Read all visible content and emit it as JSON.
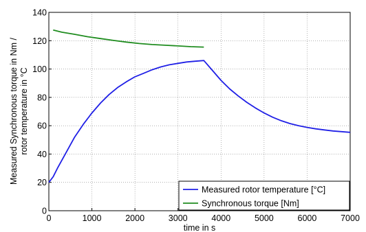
{
  "chart_data": {
    "type": "line",
    "title": "",
    "xlabel": "time in s",
    "ylabel_line1": "Measured Synchronous torque in Nm /",
    "ylabel_line2": "rotor temperature in °C",
    "xlim": [
      0,
      7000
    ],
    "ylim": [
      0,
      140
    ],
    "x_ticks": [
      0,
      1000,
      2000,
      3000,
      4000,
      5000,
      6000,
      7000
    ],
    "y_ticks": [
      0,
      20,
      40,
      60,
      80,
      100,
      120,
      140
    ],
    "grid": true,
    "legend_position": "bottom-right",
    "series": [
      {
        "name": "Measured rotor temperature [°C]",
        "color": "#1f1fe6",
        "x": [
          0,
          100,
          200,
          400,
          600,
          800,
          1000,
          1200,
          1400,
          1600,
          1800,
          2000,
          2200,
          2400,
          2600,
          2800,
          3000,
          3200,
          3400,
          3600,
          3800,
          4000,
          4200,
          4400,
          4600,
          4800,
          5000,
          5200,
          5400,
          5600,
          5800,
          6000,
          6200,
          6400,
          6600,
          6800,
          7000
        ],
        "y": [
          20,
          24,
          30,
          41,
          52,
          61,
          69,
          76,
          82,
          87,
          91,
          94.5,
          97,
          99.5,
          101.5,
          103,
          104,
          105,
          105.5,
          106,
          99,
          92,
          86,
          81,
          76.5,
          72.5,
          69,
          66,
          63.5,
          61.5,
          60,
          58.8,
          57.8,
          57,
          56.3,
          55.8,
          55.3
        ]
      },
      {
        "name": "Synchronous torque [Nm]",
        "color": "#1f8c1f",
        "x": [
          100,
          300,
          600,
          900,
          1200,
          1500,
          1800,
          2100,
          2400,
          2700,
          3000,
          3300,
          3600
        ],
        "y": [
          127.5,
          126,
          124.5,
          122.8,
          121.5,
          120.2,
          119,
          118,
          117.3,
          116.8,
          116.3,
          115.8,
          115.5
        ]
      }
    ]
  }
}
